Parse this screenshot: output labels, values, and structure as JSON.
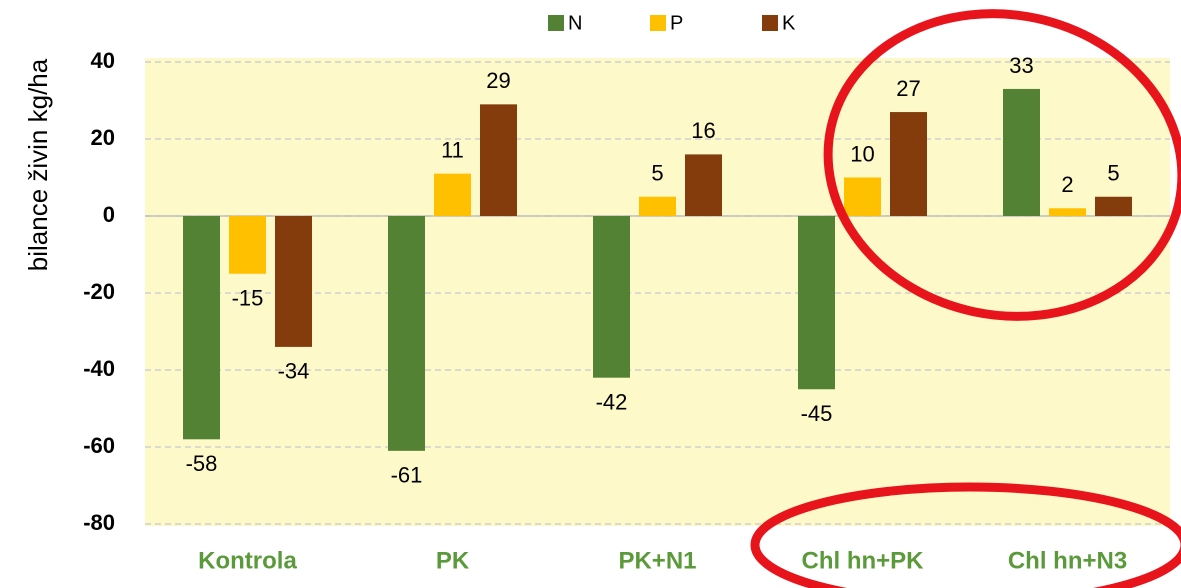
{
  "chart_data": {
    "type": "bar",
    "y_label": "bilance živin  kg/ha",
    "categories": [
      "Kontrola",
      "PK",
      "PK+N1",
      "Chl hn+PK",
      "Chl hn+N3"
    ],
    "series": [
      {
        "name": "N",
        "color": "#548235",
        "values": [
          -58,
          -61,
          -42,
          -45,
          33
        ]
      },
      {
        "name": "P",
        "color": "#ffc000",
        "values": [
          -15,
          11,
          5,
          10,
          2
        ]
      },
      {
        "name": "K",
        "color": "#843c0c",
        "values": [
          -34,
          29,
          16,
          27,
          5
        ]
      }
    ],
    "ylim": [
      -80,
      40
    ],
    "yticks": [
      -80,
      -60,
      -40,
      -20,
      0,
      20,
      40
    ],
    "grid": true,
    "legend": "top"
  }
}
